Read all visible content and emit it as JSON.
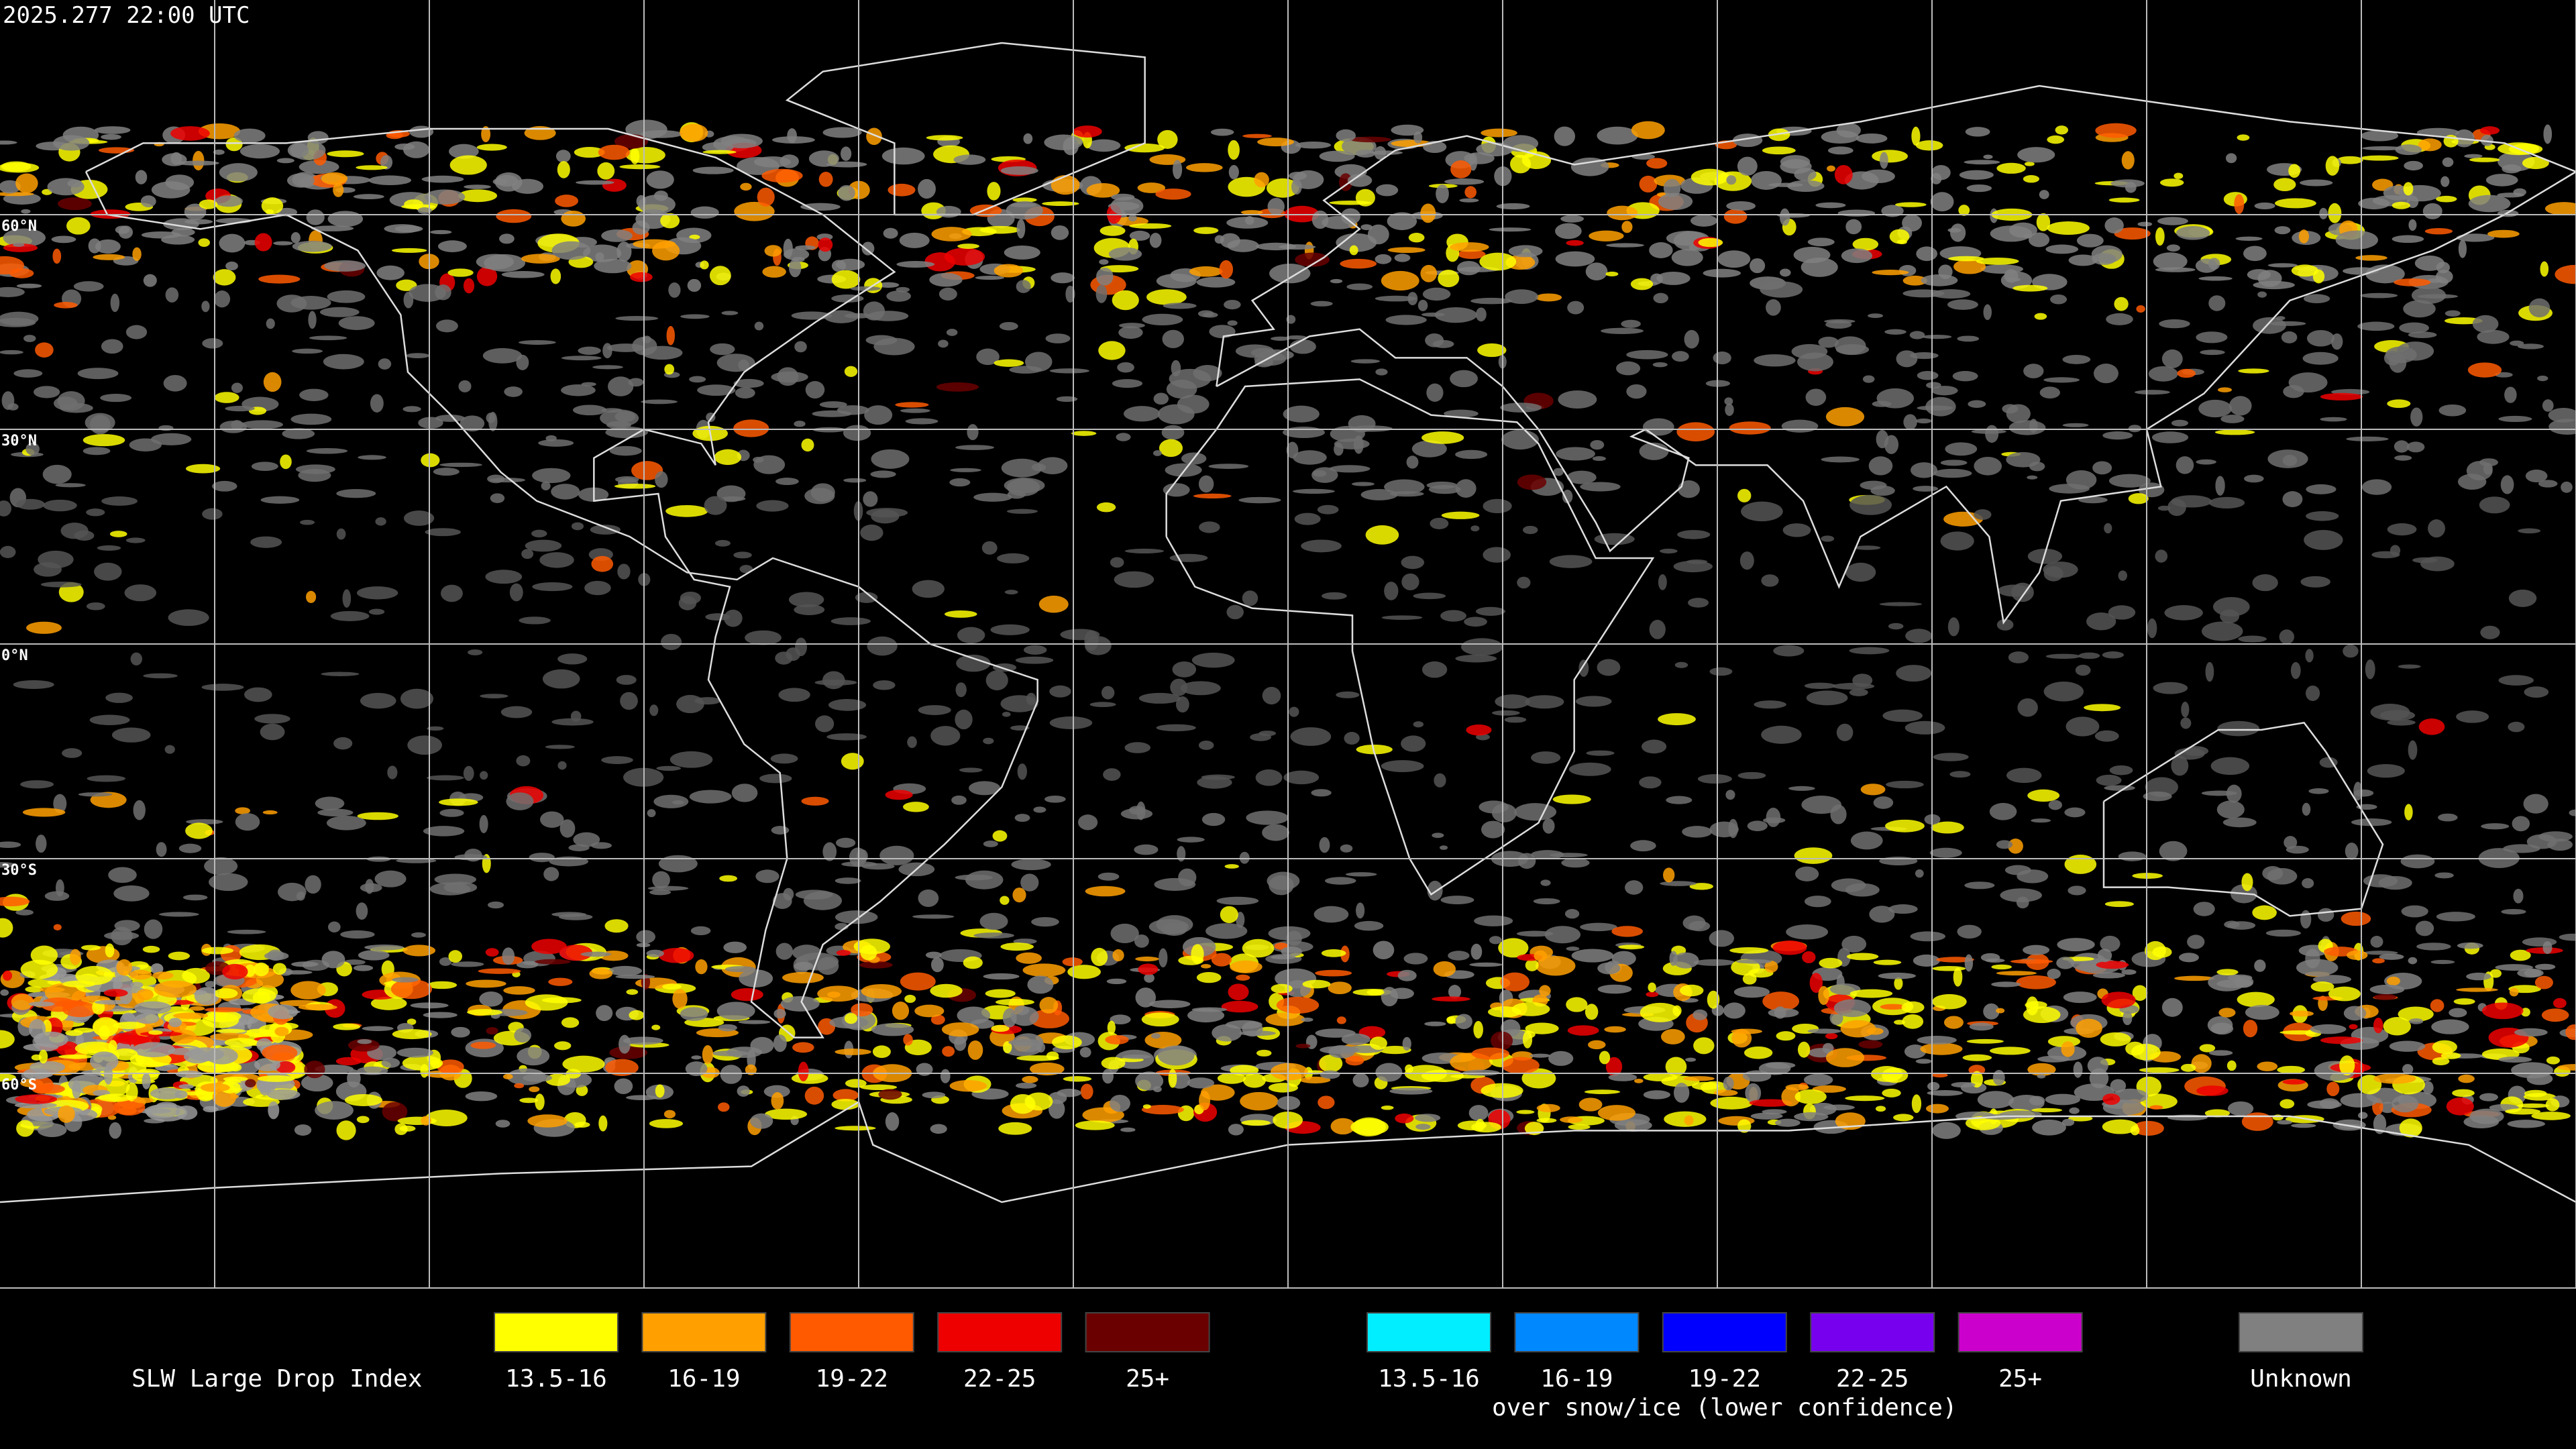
{
  "header": {
    "timestamp": "2025.277 22:00 UTC"
  },
  "grid": {
    "latitude_labels": [
      "60°N",
      "30°N",
      "0°N",
      "30°S",
      "60°S"
    ]
  },
  "legend": {
    "title": "SLW Large Drop Index",
    "groups": [
      {
        "items": [
          {
            "label": "13.5-16",
            "color": "#ffff00"
          },
          {
            "label": "16-19",
            "color": "#ffa000"
          },
          {
            "label": "19-22",
            "color": "#ff5a00"
          },
          {
            "label": "22-25",
            "color": "#ee0000"
          },
          {
            "label": "25+",
            "color": "#6a0000"
          }
        ]
      },
      {
        "items": [
          {
            "label": "13.5-16",
            "color": "#00eeff"
          },
          {
            "label": "16-19",
            "color": "#0088ff"
          },
          {
            "label": "19-22",
            "color": "#0000ff"
          },
          {
            "label": "22-25",
            "color": "#7700ee"
          },
          {
            "label": "25+",
            "color": "#cc00cc"
          }
        ],
        "caption": "over snow/ice (lower confidence)"
      },
      {
        "items": [
          {
            "label": "Unknown",
            "color": "#808080"
          }
        ]
      }
    ]
  }
}
